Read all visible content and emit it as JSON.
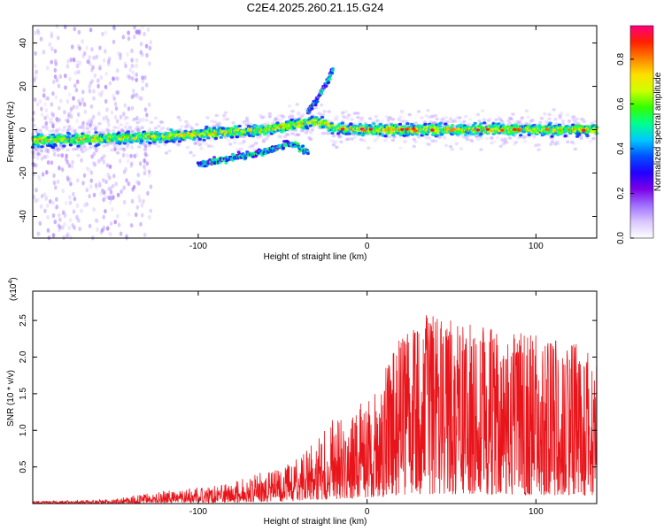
{
  "title": "C2E4.2025.260.21.15.G24",
  "chart_data": [
    {
      "type": "heatmap",
      "name": "spectrogram",
      "xlabel": "Height of straight line (km)",
      "ylabel": "Frequency (Hz)",
      "xlim": [
        -198,
        136
      ],
      "ylim": [
        -50,
        48
      ],
      "xticks": [
        -100,
        0,
        100
      ],
      "yticks": [
        -40,
        -20,
        0,
        20,
        40
      ],
      "colorbar": {
        "label": "Normalized spectral amplitude",
        "range": [
          0,
          0.95
        ],
        "ticks": [
          0.0,
          0.2,
          0.4,
          0.6,
          0.8
        ],
        "colors": [
          "#ffffff",
          "#d9c6ff",
          "#a070ff",
          "#7a00e6",
          "#2200ff",
          "#0050ff",
          "#00c8ff",
          "#00ff90",
          "#33ff00",
          "#ccff00",
          "#ffe000",
          "#ff8000",
          "#ff2000",
          "#ff0080"
        ]
      },
      "features": [
        {
          "label": "main band",
          "x": [
            -198,
            -150,
            -120,
            -100,
            -80,
            -60,
            -45,
            -30,
            -20,
            0,
            50,
            100,
            136
          ],
          "y": [
            -5,
            -4,
            -3,
            -2,
            -1,
            0,
            2,
            4,
            1,
            0,
            0,
            0,
            0
          ]
        },
        {
          "label": "rising branch",
          "x": [
            -35,
            -30,
            -25,
            -20
          ],
          "y": [
            8,
            14,
            20,
            28
          ]
        },
        {
          "label": "lower branch",
          "x": [
            -100,
            -80,
            -60,
            -45,
            -35
          ],
          "y": [
            -16,
            -13,
            -10,
            -6,
            -10
          ]
        }
      ]
    },
    {
      "type": "line",
      "name": "snr",
      "color": "#e8141a",
      "xlabel": "Height of straight line (km)",
      "ylabel": "SNR (10 * v/v)",
      "multiplier": "(x10",
      "multiplier_exp": "4",
      "multiplier_close": ")",
      "xlim": [
        -198,
        136
      ],
      "ylim": [
        0,
        2.9
      ],
      "xticks": [
        -100,
        0,
        100
      ],
      "yticks": [
        0.5,
        1.0,
        1.5,
        2.0,
        2.5
      ],
      "envelope": [
        {
          "x": -198,
          "y": 0.03
        },
        {
          "x": -150,
          "y": 0.06
        },
        {
          "x": -130,
          "y": 0.15
        },
        {
          "x": -100,
          "y": 0.22
        },
        {
          "x": -80,
          "y": 0.3
        },
        {
          "x": -60,
          "y": 0.45
        },
        {
          "x": -45,
          "y": 0.6
        },
        {
          "x": -30,
          "y": 0.85
        },
        {
          "x": -20,
          "y": 1.2
        },
        {
          "x": -5,
          "y": 1.4
        },
        {
          "x": 10,
          "y": 1.8
        },
        {
          "x": 20,
          "y": 2.3
        },
        {
          "x": 35,
          "y": 2.6
        },
        {
          "x": 50,
          "y": 2.5
        },
        {
          "x": 75,
          "y": 2.4
        },
        {
          "x": 100,
          "y": 2.3
        },
        {
          "x": 120,
          "y": 2.2
        },
        {
          "x": 136,
          "y": 2.1
        }
      ]
    }
  ]
}
